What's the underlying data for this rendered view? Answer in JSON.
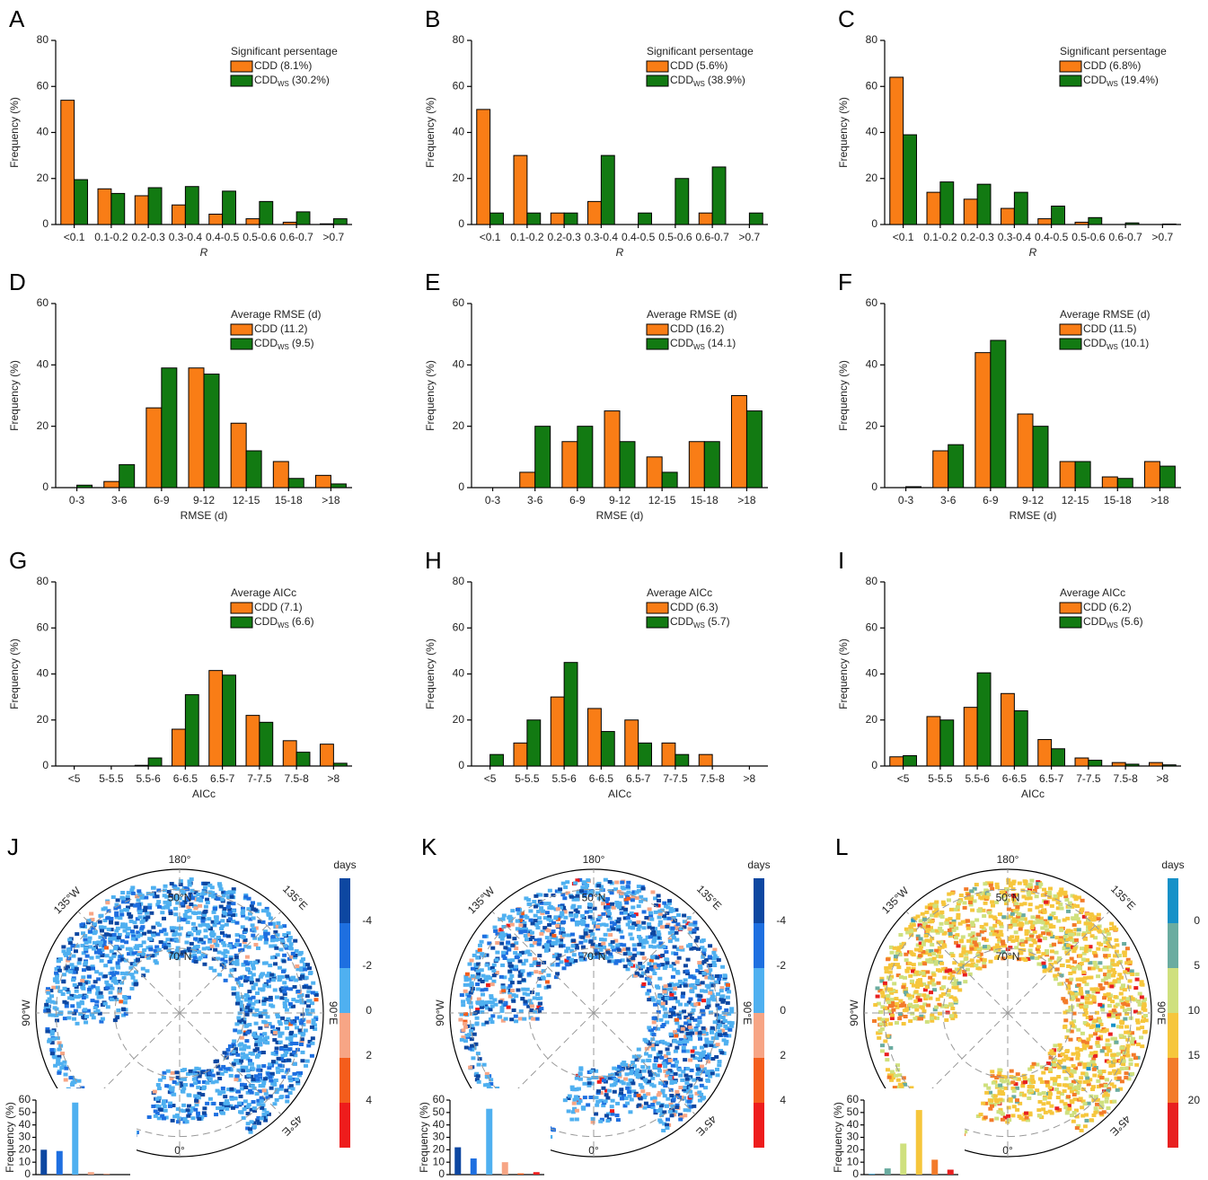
{
  "chart_data": [
    {
      "type": "bar",
      "panel": "A",
      "xlabel": "R",
      "ylabel": "Frequency (%)",
      "legend_title": "Significant persentage",
      "categories": [
        "<0.1",
        "0.1-0.2",
        "0.2-0.3",
        "0.3-0.4",
        "0.4-0.5",
        "0.5-0.6",
        "0.6-0.7",
        ">0.7"
      ],
      "ylim": [
        0,
        80
      ],
      "yticks": [
        0,
        20,
        40,
        60,
        80
      ],
      "series": [
        {
          "name": "CDD",
          "note": "(8.1%)",
          "color": "#f97d16",
          "values": [
            54,
            15.5,
            12.5,
            8.5,
            4.5,
            2.5,
            1,
            0.3
          ]
        },
        {
          "name": "CDD",
          "subscript": "WS",
          "note": "(30.2%)",
          "color": "#127a12",
          "values": [
            19.5,
            13.5,
            16,
            16.5,
            14.5,
            10,
            5.5,
            2.5
          ]
        }
      ]
    },
    {
      "type": "bar",
      "panel": "B",
      "xlabel": "R",
      "ylabel": "Frequency (%)",
      "legend_title": "Significant persentage",
      "categories": [
        "<0.1",
        "0.1-0.2",
        "0.2-0.3",
        "0.3-0.4",
        "0.4-0.5",
        "0.5-0.6",
        "0.6-0.7",
        ">0.7"
      ],
      "ylim": [
        0,
        80
      ],
      "yticks": [
        0,
        20,
        40,
        60,
        80
      ],
      "series": [
        {
          "name": "CDD",
          "note": "(5.6%)",
          "color": "#f97d16",
          "values": [
            50,
            30,
            5,
            10,
            0,
            0,
            5,
            0
          ]
        },
        {
          "name": "CDD",
          "subscript": "WS",
          "note": "(38.9%)",
          "color": "#127a12",
          "values": [
            5,
            5,
            5,
            30,
            5,
            20,
            25,
            5
          ]
        }
      ]
    },
    {
      "type": "bar",
      "panel": "C",
      "xlabel": "R",
      "ylabel": "Frequency (%)",
      "legend_title": "Significant persentage",
      "categories": [
        "<0.1",
        "0.1-0.2",
        "0.2-0.3",
        "0.3-0.4",
        "0.4-0.5",
        "0.5-0.6",
        "0.6-0.7",
        ">0.7"
      ],
      "ylim": [
        0,
        80
      ],
      "yticks": [
        0,
        20,
        40,
        60,
        80
      ],
      "series": [
        {
          "name": "CDD",
          "note": "(6.8%)",
          "color": "#f97d16",
          "values": [
            64,
            14,
            11,
            7,
            2.5,
            1,
            0,
            0
          ]
        },
        {
          "name": "CDD",
          "subscript": "WS",
          "note": "(19.4%)",
          "color": "#127a12",
          "values": [
            39,
            18.5,
            17.5,
            14,
            8,
            3,
            0.7,
            0.2
          ]
        }
      ]
    },
    {
      "type": "bar",
      "panel": "D",
      "xlabel": "RMSE (d)",
      "ylabel": "Frequency (%)",
      "legend_title": "Average RMSE (d)",
      "categories": [
        "0-3",
        "3-6",
        "6-9",
        "9-12",
        "12-15",
        "15-18",
        ">18"
      ],
      "ylim": [
        0,
        60
      ],
      "yticks": [
        0,
        20,
        40,
        60
      ],
      "series": [
        {
          "name": "CDD",
          "note": "(11.2)",
          "color": "#f97d16",
          "values": [
            0,
            2,
            26,
            39,
            21,
            8.5,
            4
          ]
        },
        {
          "name": "CDD",
          "subscript": "WS",
          "note": "(9.5)",
          "color": "#127a12",
          "values": [
            0.8,
            7.5,
            39,
            37,
            12,
            3,
            1.2
          ]
        }
      ]
    },
    {
      "type": "bar",
      "panel": "E",
      "xlabel": "RMSE (d)",
      "ylabel": "Frequency (%)",
      "legend_title": "Average RMSE (d)",
      "categories": [
        "0-3",
        "3-6",
        "6-9",
        "9-12",
        "12-15",
        "15-18",
        ">18"
      ],
      "ylim": [
        0,
        60
      ],
      "yticks": [
        0,
        20,
        40,
        60
      ],
      "series": [
        {
          "name": "CDD",
          "note": "(16.2)",
          "color": "#f97d16",
          "values": [
            0,
            5,
            15,
            25,
            10,
            15,
            30
          ]
        },
        {
          "name": "CDD",
          "subscript": "WS",
          "note": "(14.1)",
          "color": "#127a12",
          "values": [
            0,
            20,
            20,
            15,
            5,
            15,
            25
          ]
        }
      ]
    },
    {
      "type": "bar",
      "panel": "F",
      "xlabel": "RMSE (d)",
      "ylabel": "Frequency (%)",
      "legend_title": "Average RMSE (d)",
      "categories": [
        "0-3",
        "3-6",
        "6-9",
        "9-12",
        "12-15",
        "15-18",
        ">18"
      ],
      "ylim": [
        0,
        60
      ],
      "yticks": [
        0,
        20,
        40,
        60
      ],
      "series": [
        {
          "name": "CDD",
          "note": "(11.5)",
          "color": "#f97d16",
          "values": [
            0,
            12,
            44,
            24,
            8.5,
            3.5,
            8.5
          ]
        },
        {
          "name": "CDD",
          "subscript": "WS",
          "note": "(10.1)",
          "color": "#127a12",
          "values": [
            0.3,
            14,
            48,
            20,
            8.5,
            3,
            7
          ]
        }
      ]
    },
    {
      "type": "bar",
      "panel": "G",
      "xlabel": "AICc",
      "ylabel": "Frequency (%)",
      "legend_title": "Average AICc",
      "categories": [
        "<5",
        "5-5.5",
        "5.5-6",
        "6-6.5",
        "6.5-7",
        "7-7.5",
        "7.5-8",
        ">8"
      ],
      "ylim": [
        0,
        80
      ],
      "yticks": [
        0,
        20,
        40,
        60,
        80
      ],
      "series": [
        {
          "name": "CDD",
          "note": "(7.1)",
          "color": "#f97d16",
          "values": [
            0,
            0,
            0.3,
            16,
            41.5,
            22,
            11,
            9.5
          ]
        },
        {
          "name": "CDD",
          "subscript": "WS",
          "note": "(6.6)",
          "color": "#127a12",
          "values": [
            0,
            0,
            3.5,
            31,
            39.5,
            19,
            6,
            1.2
          ]
        }
      ]
    },
    {
      "type": "bar",
      "panel": "H",
      "xlabel": "AICc",
      "ylabel": "Frequency (%)",
      "legend_title": "Average AICc",
      "categories": [
        "<5",
        "5-5.5",
        "5.5-6",
        "6-6.5",
        "6.5-7",
        "7-7.5",
        "7.5-8",
        ">8"
      ],
      "ylim": [
        0,
        80
      ],
      "yticks": [
        0,
        20,
        40,
        60,
        80
      ],
      "series": [
        {
          "name": "CDD",
          "note": "(6.3)",
          "color": "#f97d16",
          "values": [
            0,
            10,
            30,
            25,
            20,
            10,
            5,
            0
          ]
        },
        {
          "name": "CDD",
          "subscript": "WS",
          "note": "(5.7)",
          "color": "#127a12",
          "values": [
            5,
            20,
            45,
            15,
            10,
            5,
            0,
            0
          ]
        }
      ]
    },
    {
      "type": "bar",
      "panel": "I",
      "xlabel": "AICc",
      "ylabel": "Frequency (%)",
      "legend_title": "Average AICc",
      "categories": [
        "<5",
        "5-5.5",
        "5.5-6",
        "6-6.5",
        "6.5-7",
        "7-7.5",
        "7.5-8",
        ">8"
      ],
      "ylim": [
        0,
        80
      ],
      "yticks": [
        0,
        20,
        40,
        60,
        80
      ],
      "series": [
        {
          "name": "CDD",
          "note": "(6.2)",
          "color": "#f97d16",
          "values": [
            4,
            21.5,
            25.5,
            31.5,
            11.5,
            3.5,
            1.5,
            1.5
          ]
        },
        {
          "name": "CDD",
          "subscript": "WS",
          "note": "(5.6)",
          "color": "#127a12",
          "values": [
            4.5,
            20,
            40.5,
            24,
            7.5,
            2.5,
            0.8,
            0.5
          ]
        }
      ]
    },
    {
      "type": "map",
      "panel": "J",
      "labels": [
        "180°",
        "50°N",
        "70°N",
        "135°W",
        "135°E",
        "90°W",
        "90°E",
        "45°E",
        "0°"
      ],
      "colorbar": {
        "title": "days",
        "ticks": [
          -4,
          -2,
          0,
          2,
          4
        ],
        "colors": [
          "#0d47a1",
          "#1e6fe0",
          "#4fb0f0",
          "#f7a585",
          "#f45d1c",
          "#ee1c1c"
        ]
      },
      "inset": {
        "ylabel": "Frequency (%)",
        "ylim": [
          0,
          60
        ],
        "yticks": [
          0,
          10,
          20,
          30,
          40,
          50,
          60
        ],
        "values": [
          20,
          19,
          58,
          2,
          0.3,
          0
        ]
      }
    },
    {
      "type": "map",
      "panel": "K",
      "labels": [
        "180°",
        "50°N",
        "70°N",
        "135°W",
        "135°E",
        "90°W",
        "90°E",
        "45°E",
        "0°"
      ],
      "colorbar": {
        "title": "days",
        "ticks": [
          -4,
          -2,
          0,
          2,
          4
        ],
        "colors": [
          "#0d47a1",
          "#1e6fe0",
          "#4fb0f0",
          "#f7a585",
          "#f45d1c",
          "#ee1c1c"
        ]
      },
      "inset": {
        "ylabel": "Frequency (%)",
        "ylim": [
          0,
          60
        ],
        "yticks": [
          0,
          10,
          20,
          30,
          40,
          50,
          60
        ],
        "values": [
          22,
          13,
          53,
          10,
          1,
          2
        ]
      }
    },
    {
      "type": "map",
      "panel": "L",
      "labels": [
        "180°",
        "50°N",
        "70°N",
        "135°W",
        "135°E",
        "90°W",
        "90°E",
        "45°E",
        "0°"
      ],
      "colorbar": {
        "title": "days",
        "ticks": [
          0,
          5,
          10,
          15,
          20
        ],
        "colors": [
          "#1691c8",
          "#6aaca0",
          "#cfe07e",
          "#f6c63c",
          "#f37b2a",
          "#e82020"
        ]
      },
      "inset": {
        "ylabel": "Frequency (%)",
        "ylim": [
          0,
          60
        ],
        "yticks": [
          0,
          10,
          20,
          30,
          40,
          50,
          60
        ],
        "values": [
          0.5,
          5,
          25,
          52,
          12,
          4
        ]
      }
    }
  ]
}
